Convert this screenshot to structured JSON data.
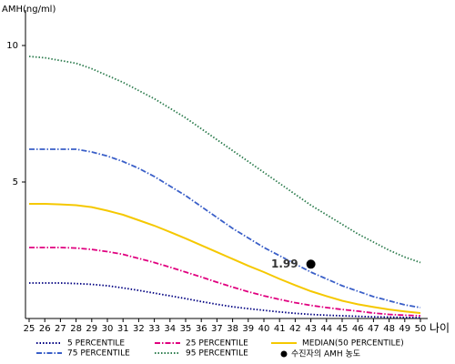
{
  "chart_data": {
    "type": "line",
    "y_label": "AMH(ng/ml)",
    "x_label": "나이",
    "x": [
      25,
      26,
      27,
      28,
      29,
      30,
      31,
      32,
      33,
      34,
      35,
      36,
      37,
      38,
      39,
      40,
      41,
      42,
      43,
      44,
      45,
      46,
      47,
      48,
      49,
      50
    ],
    "xlim": [
      25,
      50
    ],
    "xticks": [
      25,
      26,
      27,
      28,
      29,
      30,
      31,
      32,
      33,
      34,
      35,
      36,
      37,
      38,
      39,
      40,
      41,
      42,
      43,
      44,
      45,
      46,
      47,
      48,
      49,
      50
    ],
    "ylim": [
      0,
      11.3
    ],
    "yticks": [
      5,
      10
    ],
    "grid": false,
    "series": [
      {
        "name": "5 PERCENTILE",
        "color": "#000080",
        "style": "dotted",
        "values": [
          1.3,
          1.3,
          1.3,
          1.28,
          1.25,
          1.2,
          1.12,
          1.03,
          0.93,
          0.83,
          0.73,
          0.62,
          0.52,
          0.43,
          0.36,
          0.3,
          0.24,
          0.19,
          0.15,
          0.12,
          0.1,
          0.08,
          0.06,
          0.05,
          0.04,
          0.03
        ]
      },
      {
        "name": "25 PERCENTILE",
        "color": "#e0007f",
        "style": "dashdot",
        "values": [
          2.6,
          2.6,
          2.6,
          2.58,
          2.53,
          2.45,
          2.35,
          2.2,
          2.05,
          1.88,
          1.7,
          1.52,
          1.33,
          1.15,
          0.98,
          0.83,
          0.7,
          0.58,
          0.48,
          0.4,
          0.33,
          0.27,
          0.2,
          0.15,
          0.12,
          0.1
        ]
      },
      {
        "name": "MEDIAN(50 PERCENTILE)",
        "color": "#f5c800",
        "style": "solid",
        "values": [
          4.2,
          4.2,
          4.18,
          4.15,
          4.08,
          3.95,
          3.8,
          3.6,
          3.4,
          3.17,
          2.93,
          2.68,
          2.43,
          2.18,
          1.93,
          1.7,
          1.45,
          1.22,
          1.0,
          0.82,
          0.65,
          0.52,
          0.42,
          0.33,
          0.26,
          0.2
        ]
      },
      {
        "name": "75 PERCENTILE",
        "color": "#3a5fc8",
        "style": "dashdot",
        "values": [
          6.2,
          6.2,
          6.2,
          6.2,
          6.1,
          5.95,
          5.75,
          5.5,
          5.2,
          4.85,
          4.5,
          4.1,
          3.7,
          3.3,
          2.95,
          2.6,
          2.3,
          2.0,
          1.7,
          1.45,
          1.2,
          1.0,
          0.8,
          0.65,
          0.5,
          0.4
        ]
      },
      {
        "name": "95 PERCENTILE",
        "color": "#2e7d4f",
        "style": "dotted",
        "values": [
          9.6,
          9.55,
          9.45,
          9.35,
          9.15,
          8.9,
          8.65,
          8.35,
          8.05,
          7.7,
          7.35,
          6.95,
          6.55,
          6.15,
          5.75,
          5.35,
          4.95,
          4.55,
          4.15,
          3.8,
          3.45,
          3.1,
          2.8,
          2.5,
          2.25,
          2.05
        ]
      }
    ],
    "points": {
      "name": "수진자의 AMH 농도",
      "color": "#000000",
      "x": [
        43
      ],
      "values": [
        1.99
      ]
    }
  }
}
